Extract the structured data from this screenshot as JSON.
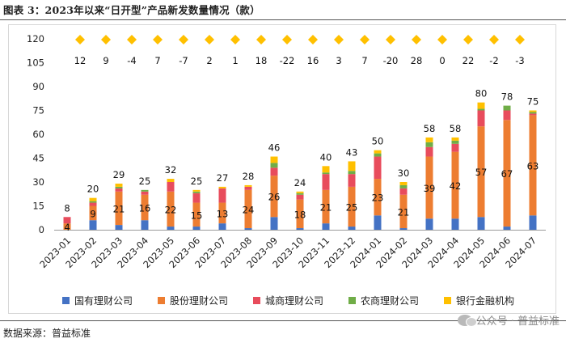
{
  "title": "图表 3：2023年以来“日开型”产品新发数量情况（款）",
  "source": "数据来源：普益标准",
  "watermark": "公众号 · 普益标准",
  "chart_data": {
    "type": "bar",
    "stacked": true,
    "categories": [
      "2023-01",
      "2023-02",
      "2023-03",
      "2023-04",
      "2023-05",
      "2023-06",
      "2023-07",
      "2023-08",
      "2023-09",
      "2023-10",
      "2023-11",
      "2023-12",
      "2024-01",
      "2024-02",
      "2024-03",
      "2024-04",
      "2024-05",
      "2024-06",
      "2024-07"
    ],
    "ylim": [
      0,
      120
    ],
    "yticks": [
      0,
      15,
      30,
      45,
      60,
      75,
      90,
      105,
      120
    ],
    "totals": [
      8,
      20,
      29,
      25,
      32,
      25,
      27,
      28,
      46,
      24,
      40,
      43,
      50,
      30,
      58,
      58,
      80,
      78,
      75
    ],
    "stock_labels": [
      4,
      9,
      21,
      16,
      22,
      15,
      13,
      24,
      26,
      18,
      21,
      25,
      23,
      21,
      39,
      42,
      57,
      67,
      63
    ],
    "diff_labels": [
      12,
      9,
      -4,
      7,
      -7,
      2,
      1,
      18,
      -22,
      16,
      3,
      7,
      -20,
      28,
      0,
      22,
      -2,
      -3
    ],
    "series": [
      {
        "name": "国有理财公司",
        "color": "#4472C4",
        "values": [
          0,
          6,
          3,
          6,
          2,
          2,
          4,
          1,
          8,
          1,
          4,
          2,
          9,
          1,
          7,
          7,
          8,
          2,
          9
        ]
      },
      {
        "name": "股份理财公司",
        "color": "#ED7D31",
        "values": [
          4,
          9,
          21,
          16,
          22,
          15,
          13,
          24,
          26,
          18,
          21,
          25,
          23,
          21,
          39,
          42,
          57,
          67,
          63
        ]
      },
      {
        "name": "城商理财公司",
        "color": "#E84C5C",
        "values": [
          4,
          2,
          2,
          2,
          6,
          6,
          9,
          2,
          5,
          3,
          10,
          8,
          14,
          4,
          6,
          5,
          10,
          6,
          1
        ]
      },
      {
        "name": "农商理财公司",
        "color": "#70AD47",
        "values": [
          0,
          1,
          1,
          1,
          0,
          1,
          0,
          0,
          3,
          1,
          1,
          2,
          2,
          2,
          3,
          2,
          1,
          3,
          1
        ]
      },
      {
        "name": "银行金融机构",
        "color": "#FFC000",
        "values": [
          0,
          2,
          2,
          0,
          2,
          1,
          1,
          1,
          4,
          1,
          4,
          6,
          2,
          2,
          3,
          2,
          4,
          0,
          1
        ]
      }
    ],
    "diff_marker_color": "#FFC000",
    "legend_position": "bottom"
  }
}
